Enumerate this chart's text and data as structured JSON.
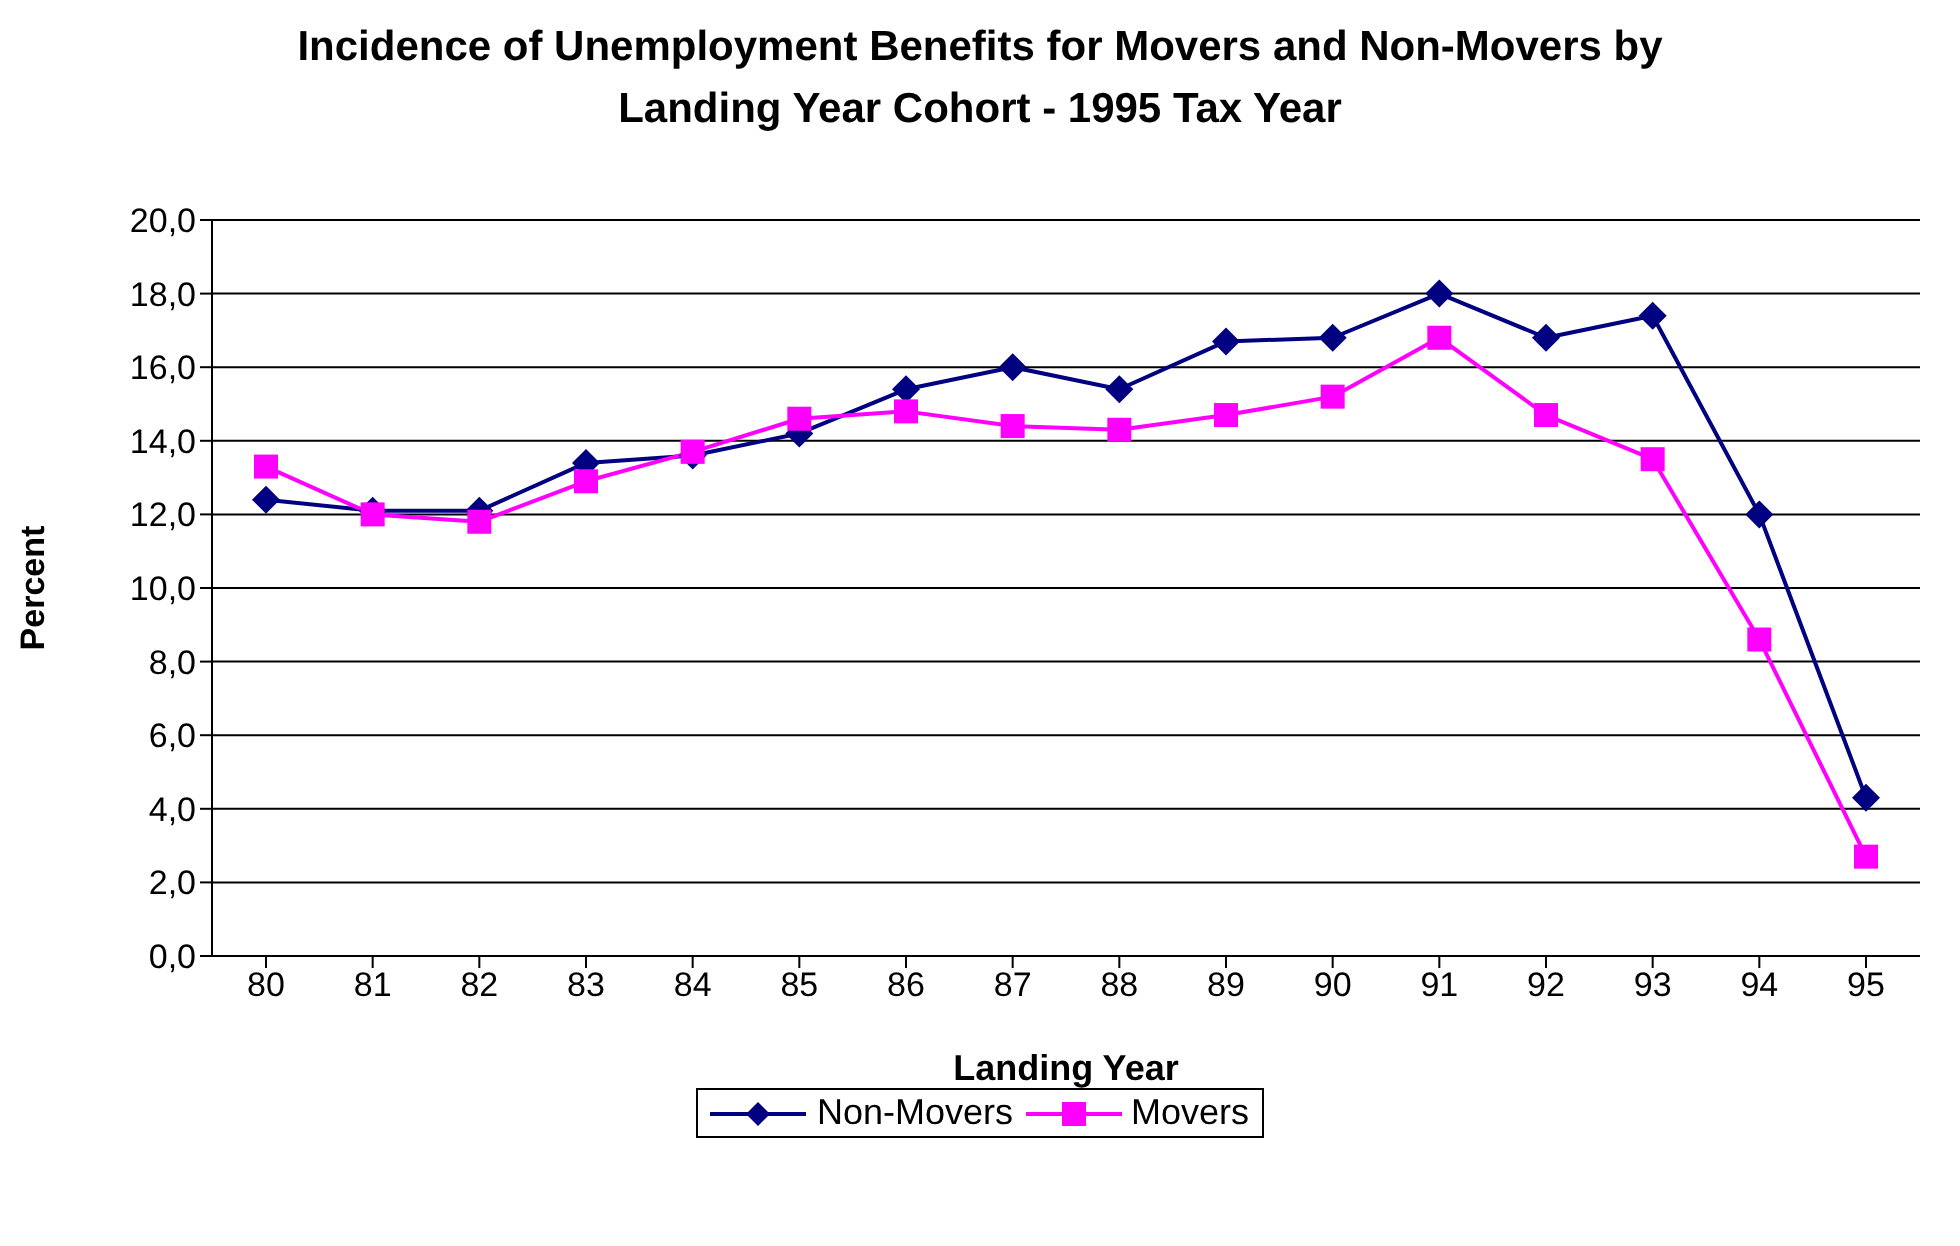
{
  "chart_data": {
    "type": "line",
    "title": "Incidence of Unemployment Benefits for Movers and Non-Movers by Landing Year Cohort - 1995 Tax Year",
    "xlabel": "Landing Year",
    "ylabel": "Percent",
    "categories": [
      "80",
      "81",
      "82",
      "83",
      "84",
      "85",
      "86",
      "87",
      "88",
      "89",
      "90",
      "91",
      "92",
      "93",
      "94",
      "95"
    ],
    "series": [
      {
        "name": "Non-Movers",
        "color": "#000080",
        "marker": "diamond",
        "values": [
          12.4,
          12.1,
          12.1,
          13.4,
          13.6,
          14.2,
          15.4,
          16.0,
          15.4,
          16.7,
          16.8,
          18.0,
          16.8,
          17.4,
          12.0,
          4.3
        ]
      },
      {
        "name": "Movers",
        "color": "#ff00ff",
        "marker": "square",
        "values": [
          13.3,
          12.0,
          11.8,
          12.9,
          13.7,
          14.6,
          14.8,
          14.4,
          14.3,
          14.7,
          15.2,
          16.8,
          14.7,
          13.5,
          8.6,
          2.7
        ]
      }
    ],
    "ylim": [
      0,
      20
    ],
    "yticks": [
      {
        "value": 0,
        "label": "0,0"
      },
      {
        "value": 2,
        "label": "2,0"
      },
      {
        "value": 4,
        "label": "4,0"
      },
      {
        "value": 6,
        "label": "6,0"
      },
      {
        "value": 8,
        "label": "8,0"
      },
      {
        "value": 10,
        "label": "10,0"
      },
      {
        "value": 12,
        "label": "12,0"
      },
      {
        "value": 14,
        "label": "14,0"
      },
      {
        "value": 16,
        "label": "16,0"
      },
      {
        "value": 18,
        "label": "18,0"
      },
      {
        "value": 20,
        "label": "20,0"
      }
    ],
    "grid": "y",
    "legend": "bottom",
    "line_style": "solid"
  }
}
